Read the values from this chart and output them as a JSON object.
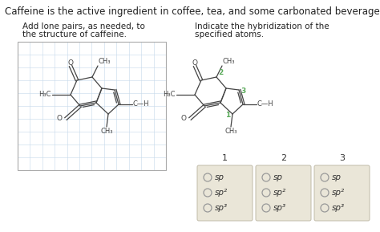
{
  "page_bg": "#ffffff",
  "header_text": "Caffeine is the active ingredient in coffee, tea, and some carbonated beverages.",
  "left_title_line1": "Add lone pairs, as needed, to",
  "left_title_line2": "the structure of caffeine.",
  "right_title_line1": "Indicate the hybridization of the",
  "right_title_line2": "specified atoms.",
  "grid_color": "#c5d8ea",
  "molecule_color": "#444444",
  "number_color": "#5aaa5a",
  "radio_options": [
    "sp",
    "sp²",
    "sp³"
  ],
  "column_labels": [
    "1",
    "2",
    "3"
  ],
  "box_color": "#eae6d8",
  "box_border": "#c0bba8",
  "font_size_header": 8.5,
  "font_size_body": 7.5,
  "font_size_mol": 6.0,
  "radio_circle_color": "#999999"
}
